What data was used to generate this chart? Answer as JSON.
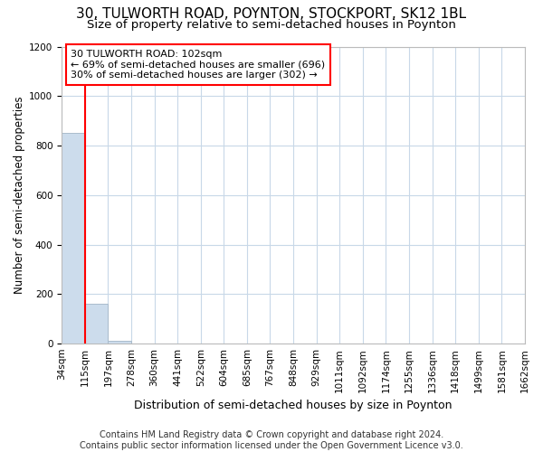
{
  "title": "30, TULWORTH ROAD, POYNTON, STOCKPORT, SK12 1BL",
  "subtitle": "Size of property relative to semi-detached houses in Poynton",
  "xlabel": "Distribution of semi-detached houses by size in Poynton",
  "ylabel": "Number of semi-detached properties",
  "bar_values": [
    851,
    160,
    10,
    2,
    1,
    0,
    0,
    0,
    0,
    0,
    0,
    0,
    0,
    0,
    0,
    0,
    0,
    0,
    0,
    0
  ],
  "x_labels": [
    "34sqm",
    "115sqm",
    "197sqm",
    "278sqm",
    "360sqm",
    "441sqm",
    "522sqm",
    "604sqm",
    "685sqm",
    "767sqm",
    "848sqm",
    "929sqm",
    "1011sqm",
    "1092sqm",
    "1174sqm",
    "1255sqm",
    "1336sqm",
    "1418sqm",
    "1499sqm",
    "1581sqm",
    "1662sqm"
  ],
  "bar_color": "#ccdcec",
  "bar_edge_color": "#aabccc",
  "grid_color": "#c8d8e8",
  "plot_bg_color": "#ffffff",
  "annotation_text": "30 TULWORTH ROAD: 102sqm\n← 69% of semi-detached houses are smaller (696)\n30% of semi-detached houses are larger (302) →",
  "annotation_box_color": "white",
  "annotation_box_edge": "red",
  "property_line_color": "red",
  "ylim": [
    0,
    1200
  ],
  "yticks": [
    0,
    200,
    400,
    600,
    800,
    1000,
    1200
  ],
  "footer": "Contains HM Land Registry data © Crown copyright and database right 2024.\nContains public sector information licensed under the Open Government Licence v3.0.",
  "title_fontsize": 11,
  "subtitle_fontsize": 9.5,
  "xlabel_fontsize": 9,
  "ylabel_fontsize": 8.5,
  "tick_fontsize": 7.5,
  "annotation_fontsize": 8,
  "footer_fontsize": 7
}
